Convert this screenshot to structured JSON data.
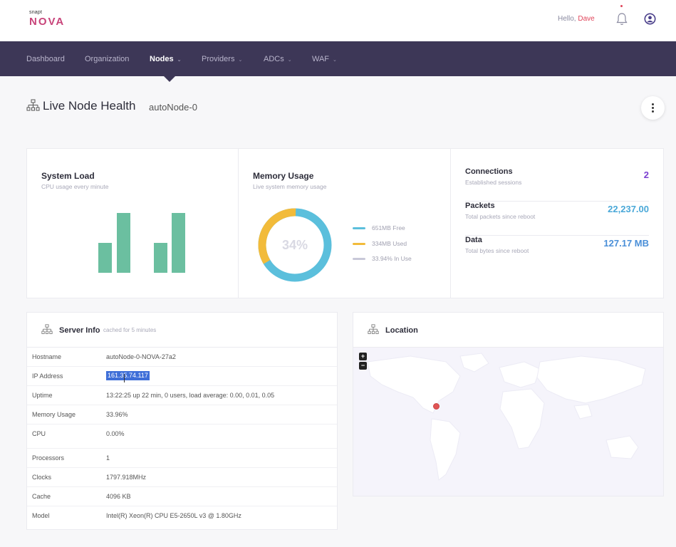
{
  "brand": {
    "small": "snapt",
    "name": "NOVA"
  },
  "header": {
    "greeting": "Hello,",
    "user": "Dave"
  },
  "nav": [
    {
      "label": "Dashboard",
      "dropdown": false,
      "active": false
    },
    {
      "label": "Organization",
      "dropdown": false,
      "active": false
    },
    {
      "label": "Nodes",
      "dropdown": true,
      "active": true
    },
    {
      "label": "Providers",
      "dropdown": true,
      "active": false
    },
    {
      "label": "ADCs",
      "dropdown": true,
      "active": false
    },
    {
      "label": "WAF",
      "dropdown": true,
      "active": false
    }
  ],
  "page": {
    "title": "Live Node Health",
    "node": "autoNode-0"
  },
  "system_load": {
    "title": "System Load",
    "subtitle": "CPU usage every minute",
    "bar_color": "#6bbfa0",
    "bars": [
      0.5,
      1.0,
      0.5,
      1.0
    ]
  },
  "memory": {
    "title": "Memory Usage",
    "subtitle": "Live system memory usage",
    "percent_label": "34%",
    "used_fraction": 0.34,
    "legend": [
      {
        "label": "651MB Free",
        "color": "#5bbfdc"
      },
      {
        "label": "334MB Used",
        "color": "#f2bb3a"
      },
      {
        "label": "33.94% In Use",
        "color": "#c8c8d8"
      }
    ]
  },
  "metrics": [
    {
      "title": "Connections",
      "subtitle": "Established sessions",
      "value": "2",
      "color": "#7b3fd0"
    },
    {
      "title": "Packets",
      "subtitle": "Total packets since reboot",
      "value": "22,237.00",
      "color": "#4aa8d8"
    },
    {
      "title": "Data",
      "subtitle": "Total bytes since reboot",
      "value": "127.17 MB",
      "color": "#4a8fd8"
    }
  ],
  "server_info": {
    "title": "Server Info",
    "subtitle": "cached for 5 minutes",
    "rows": [
      {
        "key": "Hostname",
        "value": "autoNode-0-NOVA-27a2"
      },
      {
        "key": "IP Address",
        "value": "161.35.74.117"
      },
      {
        "key": "Uptime",
        "value": "13:22:25 up 22 min, 0 users, load average: 0.00, 0.01, 0.05"
      },
      {
        "key": "Memory Usage",
        "value": "33.96%"
      },
      {
        "key": "CPU",
        "value": "0.00%"
      },
      {
        "key": "Processors",
        "value": "1"
      },
      {
        "key": "Clocks",
        "value": "1797.918MHz"
      },
      {
        "key": "Cache",
        "value": "4096 KB"
      },
      {
        "key": "Model",
        "value": "Intel(R) Xeon(R) CPU E5-2650L v3 @ 1.80GHz"
      }
    ]
  },
  "location": {
    "title": "Location",
    "zoom_in": "+",
    "zoom_out": "−"
  }
}
